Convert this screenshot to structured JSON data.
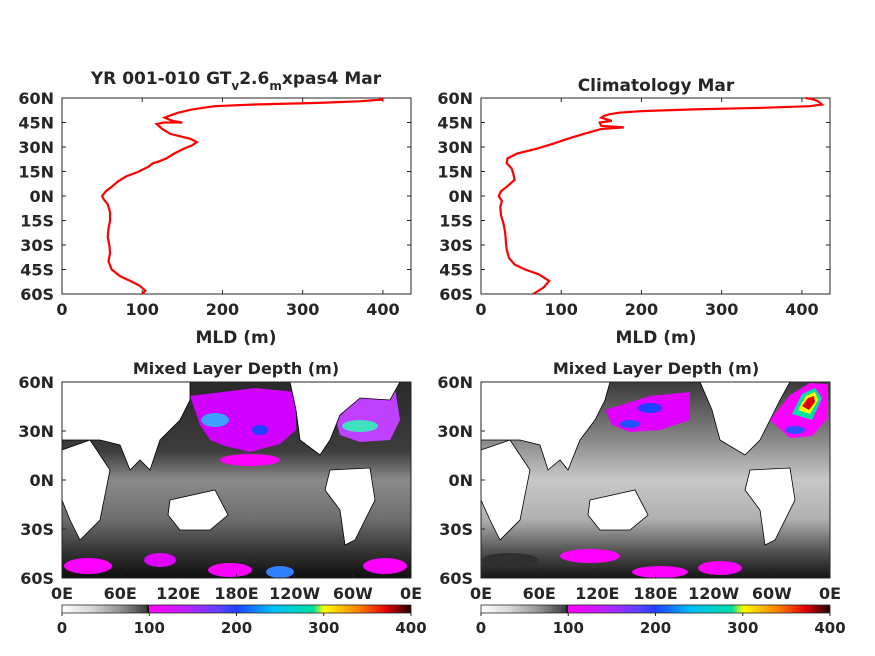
{
  "chart_data": [
    {
      "type": "line",
      "title": "YR 001-010 GT",
      "title_sub1": "v",
      "title_mid": "2.6",
      "title_sub2": "m",
      "title_end": "xpas4 Mar",
      "xlabel": "MLD (m)",
      "xlim": [
        0,
        435
      ],
      "xticks": [
        0,
        100,
        200,
        300,
        400
      ],
      "ylim": [
        -60,
        60
      ],
      "yticks": [
        60,
        45,
        30,
        15,
        0,
        -15,
        -30,
        -45,
        -60
      ],
      "yticklabels": [
        "60N",
        "45N",
        "30N",
        "15N",
        "0N",
        "15S",
        "30S",
        "45S",
        "60S"
      ],
      "line_color": "#ff0000",
      "series": [
        {
          "points": [
            [
              100,
              -60
            ],
            [
              104,
              -58
            ],
            [
              97,
              -55
            ],
            [
              85,
              -52
            ],
            [
              72,
              -49
            ],
            [
              62,
              -45
            ],
            [
              58,
              -40
            ],
            [
              60,
              -35
            ],
            [
              59,
              -30
            ],
            [
              57,
              -25
            ],
            [
              58,
              -20
            ],
            [
              60,
              -15
            ],
            [
              60,
              -10
            ],
            [
              57,
              -5
            ],
            [
              52,
              -2
            ],
            [
              50,
              0
            ],
            [
              55,
              3
            ],
            [
              63,
              6
            ],
            [
              70,
              9
            ],
            [
              80,
              12
            ],
            [
              96,
              15
            ],
            [
              108,
              18
            ],
            [
              113,
              20
            ],
            [
              120,
              21
            ],
            [
              130,
              23
            ],
            [
              140,
              26
            ],
            [
              152,
              29
            ],
            [
              162,
              31
            ],
            [
              168,
              33
            ],
            [
              160,
              35
            ],
            [
              135,
              38
            ],
            [
              125,
              41
            ],
            [
              118,
              44
            ],
            [
              127,
              45
            ],
            [
              150,
              45
            ],
            [
              138,
              46
            ],
            [
              128,
              48
            ],
            [
              133,
              49
            ],
            [
              145,
              51
            ],
            [
              162,
              53
            ],
            [
              190,
              55
            ],
            [
              240,
              56
            ],
            [
              320,
              57
            ],
            [
              370,
              58
            ],
            [
              400,
              59
            ],
            [
              395,
              60
            ]
          ]
        }
      ]
    },
    {
      "type": "line",
      "title": "Climatology Mar",
      "xlabel": "MLD (m)",
      "xlim": [
        0,
        435
      ],
      "xticks": [
        0,
        100,
        200,
        300,
        400
      ],
      "ylim": [
        -60,
        60
      ],
      "yticks": [
        60,
        45,
        30,
        15,
        0,
        -15,
        -30,
        -45,
        -60
      ],
      "yticklabels": [
        "60N",
        "45N",
        "30N",
        "15N",
        "0N",
        "15S",
        "30S",
        "45S",
        "60S"
      ],
      "line_color": "#ff0000",
      "series": [
        {
          "points": [
            [
              65,
              -60
            ],
            [
              78,
              -56
            ],
            [
              85,
              -52
            ],
            [
              72,
              -48
            ],
            [
              55,
              -45
            ],
            [
              42,
              -42
            ],
            [
              35,
              -38
            ],
            [
              32,
              -33
            ],
            [
              31,
              -28
            ],
            [
              30,
              -22
            ],
            [
              28,
              -17
            ],
            [
              25,
              -12
            ],
            [
              24,
              -7
            ],
            [
              26,
              -3
            ],
            [
              22,
              0
            ],
            [
              25,
              3
            ],
            [
              33,
              6
            ],
            [
              42,
              10
            ],
            [
              40,
              14
            ],
            [
              38,
              17
            ],
            [
              32,
              20
            ],
            [
              33,
              23
            ],
            [
              45,
              26
            ],
            [
              70,
              29
            ],
            [
              90,
              32
            ],
            [
              108,
              35
            ],
            [
              128,
              38
            ],
            [
              150,
              41
            ],
            [
              178,
              42
            ],
            [
              150,
              43
            ],
            [
              148,
              45
            ],
            [
              163,
              46
            ],
            [
              150,
              48
            ],
            [
              153,
              49
            ],
            [
              160,
              50
            ],
            [
              172,
              51
            ],
            [
              200,
              52
            ],
            [
              265,
              53
            ],
            [
              350,
              54
            ],
            [
              410,
              55
            ],
            [
              425,
              56
            ],
            [
              420,
              58
            ],
            [
              415,
              59
            ],
            [
              405,
              60
            ]
          ]
        }
      ]
    },
    {
      "type": "heatmap",
      "title": "Mixed Layer Depth (m)",
      "xticklabels": [
        "0E",
        "60E",
        "120E",
        "180E",
        "120W",
        "60W",
        "0E"
      ],
      "yticklabels": [
        "60N",
        "30N",
        "0N",
        "30S",
        "60S"
      ],
      "colorbar_ticks": [
        0,
        100,
        200,
        300,
        400
      ],
      "colorbar_stops": [
        "#ffffff",
        "#d9d9d9",
        "#909090",
        "#404040",
        "#000000",
        "#ff00ff",
        "#a040ff",
        "#2040ff",
        "#00c0ff",
        "#00e0a0",
        "#ffff00",
        "#ff8000",
        "#e00000",
        "#200000"
      ]
    },
    {
      "type": "heatmap",
      "title": "Mixed Layer Depth (m)",
      "xticklabels": [
        "0E",
        "60E",
        "120E",
        "180E",
        "120W",
        "60W",
        "0E"
      ],
      "yticklabels": [
        "60N",
        "30N",
        "0N",
        "30S",
        "60S"
      ],
      "colorbar_ticks": [
        0,
        100,
        200,
        300,
        400
      ]
    }
  ]
}
